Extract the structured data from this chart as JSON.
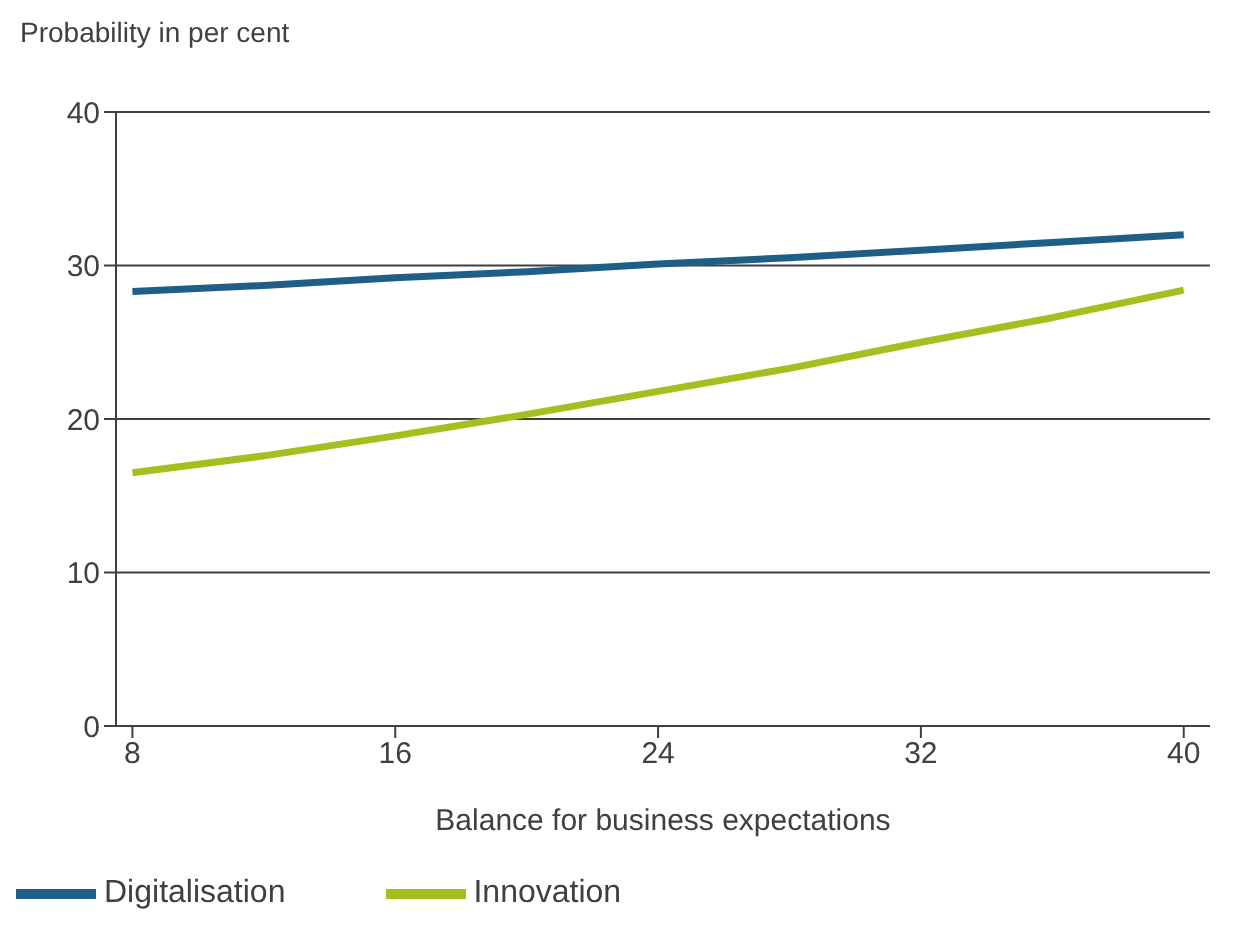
{
  "chart_data": {
    "type": "line",
    "ylabel": "Probability in per cent",
    "xlabel": "Balance for business expectations",
    "x": [
      8,
      12,
      16,
      20,
      24,
      28,
      32,
      36,
      40
    ],
    "series": [
      {
        "name": "Digitalisation",
        "color": "#1f5f87",
        "values": [
          28.3,
          28.7,
          29.2,
          29.6,
          30.1,
          30.5,
          31.0,
          31.5,
          32.0
        ]
      },
      {
        "name": "Innovation",
        "color": "#a5bf1f",
        "values": [
          16.5,
          17.6,
          18.9,
          20.3,
          21.8,
          23.3,
          25.0,
          26.6,
          28.4
        ]
      }
    ],
    "xlim": [
      7.5,
      40.8
    ],
    "xticks": [
      8,
      16,
      24,
      32,
      40
    ],
    "ylim": [
      0,
      40
    ],
    "yticks": [
      0,
      10,
      20,
      30,
      40
    ],
    "grid": "y",
    "legend": "bottom left",
    "marker": "none",
    "line_style": "solid"
  }
}
